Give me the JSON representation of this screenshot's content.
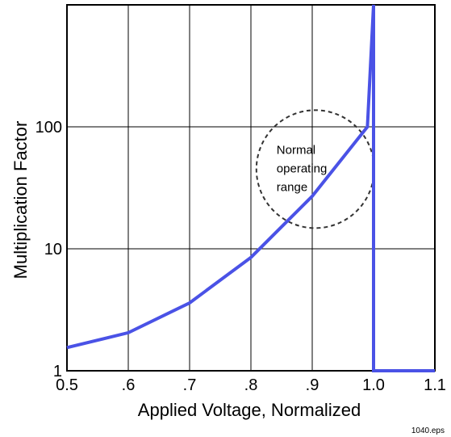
{
  "chart_data": {
    "type": "line",
    "title": "",
    "xlabel": "Applied Voltage, Normalized",
    "ylabel": "Multiplication Factor",
    "x_scale": "linear",
    "y_scale": "log",
    "xlim": [
      0.5,
      1.1
    ],
    "ylim": [
      1,
      1000
    ],
    "x_ticks": [
      {
        "value": 0.5,
        "label": "0.5"
      },
      {
        "value": 0.6,
        "label": ".6"
      },
      {
        "value": 0.7,
        "label": ".7"
      },
      {
        "value": 0.8,
        "label": ".8"
      },
      {
        "value": 0.9,
        "label": ".9"
      },
      {
        "value": 1.0,
        "label": "1.0"
      },
      {
        "value": 1.1,
        "label": "1.1"
      }
    ],
    "y_ticks": [
      {
        "value": 1,
        "label": "1"
      },
      {
        "value": 10,
        "label": "10"
      },
      {
        "value": 100,
        "label": "100"
      }
    ],
    "grid": true,
    "legend": "none",
    "series": [
      {
        "color": "#4a52e6",
        "points": [
          {
            "x": 0.5,
            "y": 1.55
          },
          {
            "x": 0.6,
            "y": 2.05
          },
          {
            "x": 0.7,
            "y": 3.6
          },
          {
            "x": 0.8,
            "y": 8.5
          },
          {
            "x": 0.9,
            "y": 27
          },
          {
            "x": 0.99,
            "y": 100
          },
          {
            "x": 1.0,
            "y": 1000
          },
          {
            "x": 1.0,
            "y": 1
          },
          {
            "x": 1.1,
            "y": 1
          }
        ]
      }
    ],
    "annotations": [
      {
        "type": "dashed-circle",
        "center": {
          "x": 0.905,
          "y": 45
        },
        "lines": [
          "Normal",
          "operating",
          "range"
        ]
      }
    ],
    "figure_id": "1040.eps"
  }
}
